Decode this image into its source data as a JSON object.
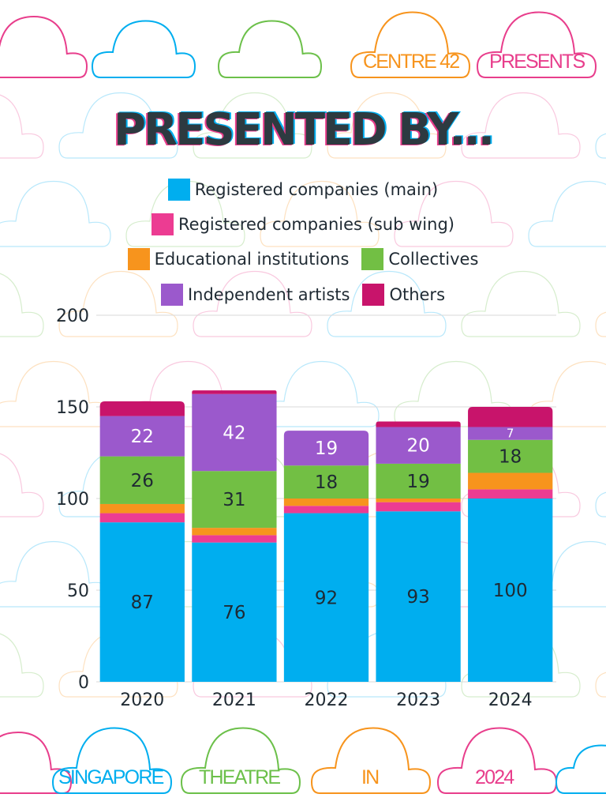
{
  "header": {
    "tags": [
      {
        "text": "CENTRE 42",
        "color": "#f7941d"
      },
      {
        "text": "PRESENTS",
        "color": "#e83e8c"
      }
    ],
    "title": "PRESENTED BY..."
  },
  "footer": {
    "tags": [
      {
        "text": "SINGAPORE",
        "color": "#00aeef"
      },
      {
        "text": "THEATRE",
        "color": "#6cc04a"
      },
      {
        "text": "IN",
        "color": "#f7941d"
      },
      {
        "text": "2024",
        "color": "#e83e8c"
      }
    ]
  },
  "colors": {
    "cloud_pink": "#e83e8c",
    "cloud_blue": "#00aeef",
    "cloud_green": "#6cc04a",
    "cloud_orange": "#f7941d"
  },
  "chart_data": {
    "type": "bar",
    "stacked": true,
    "categories": [
      "2020",
      "2021",
      "2022",
      "2023",
      "2024"
    ],
    "ylim": [
      0,
      200
    ],
    "yticks": [
      0,
      50,
      100,
      150,
      200
    ],
    "grid": true,
    "legend_position": "top",
    "series": [
      {
        "name": "Registered companies (main)",
        "color": "#00aeef",
        "values": [
          87,
          76,
          92,
          93,
          100
        ],
        "labels": [
          "87",
          "76",
          "92",
          "93",
          "100"
        ]
      },
      {
        "name": "Registered companies (sub wing)",
        "color": "#ec3c92",
        "values": [
          5,
          4,
          4,
          5,
          5
        ],
        "labels": [
          "",
          "",
          "",
          "",
          ""
        ]
      },
      {
        "name": "Educational institutions",
        "color": "#f7941d",
        "values": [
          5,
          4,
          4,
          2,
          9
        ],
        "labels": [
          "",
          "",
          "",
          "",
          ""
        ]
      },
      {
        "name": "Collectives",
        "color": "#72bf44",
        "values": [
          26,
          31,
          18,
          19,
          18
        ],
        "labels": [
          "26",
          "31",
          "18",
          "19",
          "18"
        ]
      },
      {
        "name": "Independent artists",
        "color": "#9b59cc",
        "values": [
          22,
          42,
          19,
          20,
          7
        ],
        "labels": [
          "22",
          "42",
          "19",
          "20",
          "7"
        ]
      },
      {
        "name": "Others",
        "color": "#c8146b",
        "values": [
          8,
          2,
          0,
          3,
          11
        ],
        "labels": [
          "",
          "",
          "",
          "",
          ""
        ]
      }
    ]
  }
}
